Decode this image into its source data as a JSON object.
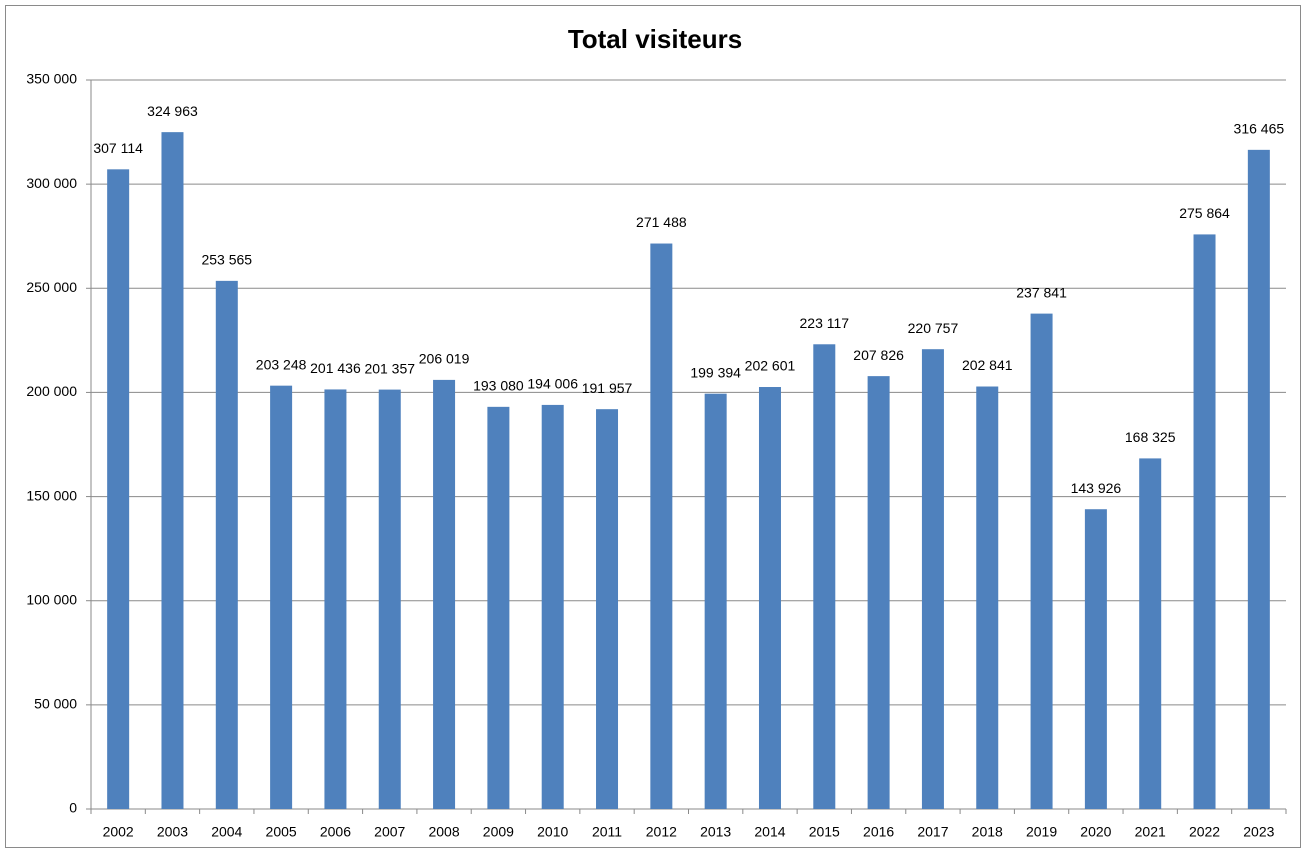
{
  "chart_data": {
    "type": "bar",
    "title": "Total visiteurs",
    "categories": [
      "2002",
      "2003",
      "2004",
      "2005",
      "2006",
      "2007",
      "2008",
      "2009",
      "2010",
      "2011",
      "2012",
      "2013",
      "2014",
      "2015",
      "2016",
      "2017",
      "2018",
      "2019",
      "2020",
      "2021",
      "2022",
      "2023"
    ],
    "values": [
      307114,
      324963,
      253565,
      203248,
      201436,
      201357,
      206019,
      193080,
      194006,
      191957,
      271488,
      199394,
      202601,
      223117,
      207826,
      220757,
      202841,
      237841,
      143926,
      168325,
      275864,
      316465
    ],
    "value_labels": [
      "307 114",
      "324 963",
      "253 565",
      "203 248",
      "201 436",
      "201 357",
      "206 019",
      "193 080",
      "194 006",
      "191 957",
      "271 488",
      "199 394",
      "202 601",
      "223 117",
      "207 826",
      "220 757",
      "202 841",
      "237 841",
      "143 926",
      "168 325",
      "275 864",
      "316 465"
    ],
    "color": "#4f81bd",
    "ylim": [
      0,
      350000
    ],
    "yticks": [
      0,
      {
        "value": 50000,
        "label": "50 000"
      },
      {
        "value": 100000,
        "label": "100 000"
      },
      {
        "value": 150000,
        "label": "150 000"
      },
      {
        "value": 200000,
        "label": "200 000"
      },
      {
        "value": 250000,
        "label": "250 000"
      },
      {
        "value": 300000,
        "label": "300 000"
      },
      {
        "value": 350000,
        "label": "350 000"
      }
    ],
    "grid": true
  }
}
